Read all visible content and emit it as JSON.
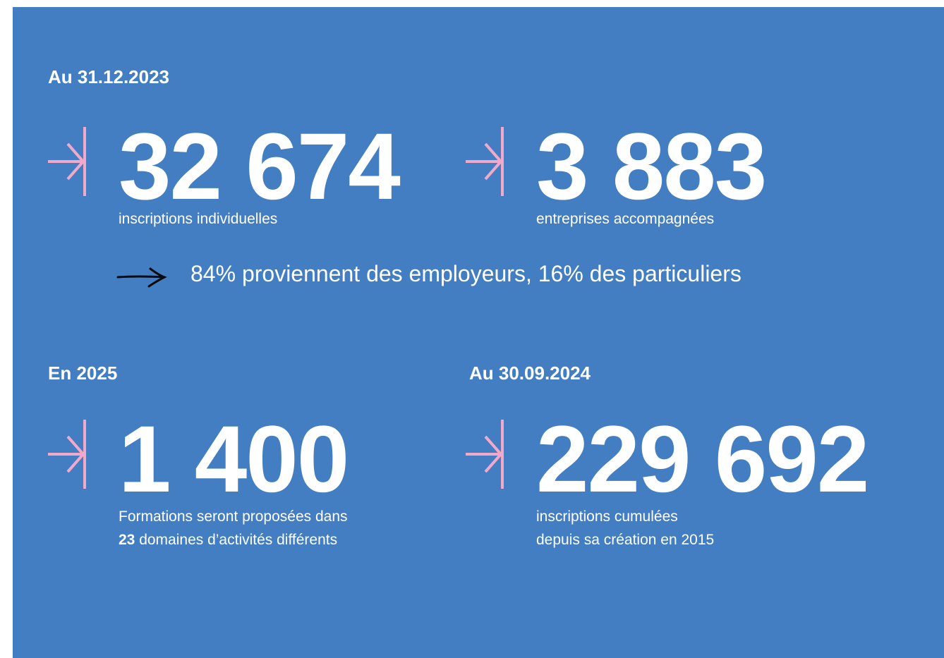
{
  "blocks": [
    {
      "heading": "Au 31.12.2023",
      "stats": [
        {
          "number": "32 674",
          "caption": "inscriptions individuelles"
        },
        {
          "number": "3 883",
          "caption": "entreprises accompagnées"
        }
      ],
      "note": "84% proviennent des employeurs, 16% des particuliers"
    },
    {
      "heading": "En 2025",
      "number": "1 400",
      "caption_parts": [
        "Formations seront proposées dans ",
        "23",
        " domaines d’activités différents"
      ]
    },
    {
      "heading": "Au 30.09.2024",
      "number": "229 692",
      "caption_lines": [
        "inscriptions cumulées",
        "depuis sa création en 2015"
      ]
    }
  ]
}
